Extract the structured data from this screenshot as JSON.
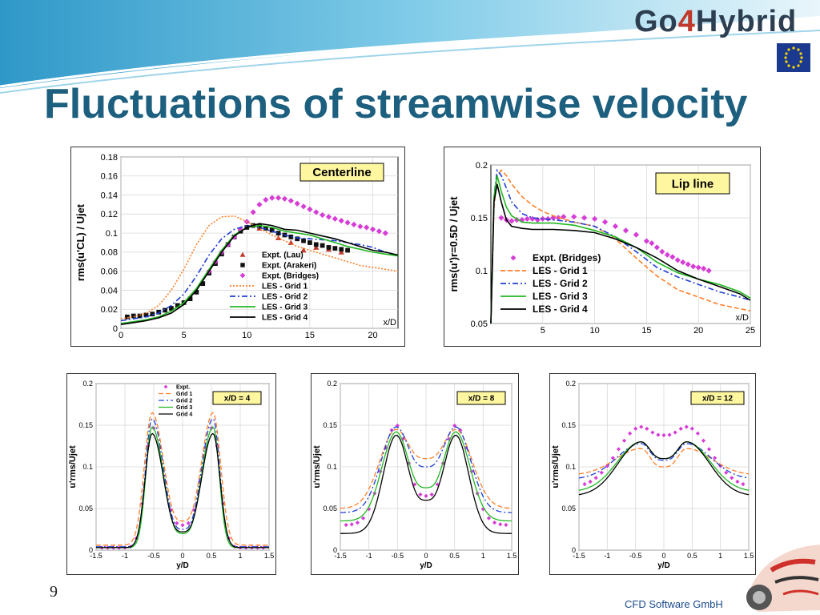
{
  "slide": {
    "title": "Fluctuations of streamwise velocity",
    "logo": {
      "part1": "Go",
      "part2": "4",
      "part3": "Hybrid"
    },
    "page_number": "9",
    "company": "CFD Software GmbH",
    "colors": {
      "title": "#1d5f7f",
      "banner": "#5bb8de",
      "lau": "#c0392b",
      "arakeri": "#111111",
      "bridges": "#d63cd6",
      "grid1": "#ff7f27",
      "grid2": "#1f3fd6",
      "grid3": "#22b822",
      "grid4": "#000000"
    },
    "icons": [
      "eu-flag-icon",
      "race-car-icon"
    ]
  },
  "chart_data": [
    {
      "id": "centerline",
      "type": "line",
      "title": "Centerline",
      "xlabel": "x/D",
      "ylabel": "rms(u'CL) / Ujet",
      "xlim": [
        0,
        22
      ],
      "ylim": [
        0,
        0.18
      ],
      "xticks": [
        0,
        5,
        10,
        15,
        20
      ],
      "yticks": [
        0,
        0.02,
        0.04,
        0.06,
        0.08,
        0.1,
        0.12,
        0.14,
        0.16,
        0.18
      ],
      "grid": true,
      "legend_placement": "bottom-right",
      "series": [
        {
          "name": "Expt. (Lau)",
          "kind": "markers",
          "marker": "triangle",
          "color": "#c0392b",
          "x": [
            11,
            12.5,
            13.5,
            14.5,
            15.5,
            16.5,
            17.5
          ],
          "y": [
            0.105,
            0.095,
            0.09,
            0.082,
            0.085,
            0.083,
            0.08
          ]
        },
        {
          "name": "Expt. (Arakeri)",
          "kind": "markers",
          "marker": "square",
          "color": "#111111",
          "x": [
            0.5,
            1,
            1.5,
            2,
            2.5,
            3,
            3.5,
            4,
            4.5,
            5,
            5.5,
            6,
            6.5,
            7,
            7.5,
            8,
            8.5,
            9,
            9.5,
            10,
            10.5,
            11,
            11.5,
            12,
            12.5,
            13,
            13.5,
            14,
            14.5,
            15,
            15.5,
            16,
            16.5,
            17,
            17.5,
            18
          ],
          "y": [
            0.012,
            0.013,
            0.013,
            0.014,
            0.015,
            0.017,
            0.019,
            0.021,
            0.024,
            0.027,
            0.031,
            0.038,
            0.047,
            0.058,
            0.068,
            0.078,
            0.088,
            0.096,
            0.102,
            0.106,
            0.108,
            0.107,
            0.105,
            0.103,
            0.1,
            0.098,
            0.096,
            0.094,
            0.092,
            0.09,
            0.088,
            0.087,
            0.085,
            0.084,
            0.083,
            0.082
          ]
        },
        {
          "name": "Expt. (Bridges)",
          "kind": "markers",
          "marker": "diamond",
          "color": "#d63cd6",
          "x": [
            7,
            7.5,
            8,
            8.5,
            9,
            9.5,
            10,
            10.5,
            11,
            11.5,
            12,
            12.5,
            13,
            13.5,
            14,
            14.5,
            15,
            15.5,
            16,
            16.5,
            17,
            17.5,
            18,
            18.5,
            19,
            19.5,
            20,
            20.5,
            21
          ],
          "y": [
            0.06,
            0.07,
            0.08,
            0.088,
            0.096,
            0.104,
            0.112,
            0.122,
            0.13,
            0.135,
            0.137,
            0.137,
            0.136,
            0.134,
            0.131,
            0.128,
            0.125,
            0.122,
            0.119,
            0.117,
            0.115,
            0.113,
            0.111,
            0.109,
            0.107,
            0.106,
            0.104,
            0.102,
            0.1
          ]
        },
        {
          "name": "LES - Grid 1",
          "kind": "line",
          "dash": "dot",
          "color": "#ff7f27",
          "x": [
            0,
            1,
            2,
            3,
            4,
            5,
            6,
            7,
            8,
            9,
            10,
            11,
            12,
            13,
            14,
            15,
            16,
            17,
            18,
            19,
            20,
            21,
            22
          ],
          "y": [
            0.01,
            0.012,
            0.016,
            0.024,
            0.04,
            0.062,
            0.088,
            0.108,
            0.117,
            0.118,
            0.112,
            0.105,
            0.098,
            0.092,
            0.086,
            0.082,
            0.078,
            0.074,
            0.07,
            0.066,
            0.064,
            0.062,
            0.06
          ]
        },
        {
          "name": "LES - Grid 2",
          "kind": "line",
          "dash": "dashdot",
          "color": "#1f3fd6",
          "x": [
            0,
            1,
            2,
            3,
            4,
            5,
            6,
            7,
            8,
            9,
            10,
            11,
            12,
            13,
            14,
            15,
            16,
            17,
            18,
            19,
            20,
            21,
            22
          ],
          "y": [
            0.008,
            0.01,
            0.012,
            0.016,
            0.024,
            0.036,
            0.055,
            0.077,
            0.094,
            0.104,
            0.108,
            0.106,
            0.102,
            0.098,
            0.095,
            0.094,
            0.093,
            0.092,
            0.09,
            0.088,
            0.085,
            0.08,
            0.076
          ]
        },
        {
          "name": "LES - Grid 3",
          "kind": "line",
          "dash": "solid",
          "color": "#22b822",
          "x": [
            0,
            1,
            2,
            3,
            4,
            5,
            6,
            7,
            8,
            9,
            10,
            11,
            12,
            13,
            14,
            15,
            16,
            17,
            18,
            19,
            20,
            21,
            22
          ],
          "y": [
            0.005,
            0.007,
            0.009,
            0.012,
            0.018,
            0.027,
            0.042,
            0.062,
            0.082,
            0.098,
            0.106,
            0.108,
            0.106,
            0.102,
            0.1,
            0.098,
            0.094,
            0.09,
            0.086,
            0.083,
            0.08,
            0.078,
            0.076
          ]
        },
        {
          "name": "LES - Grid 4",
          "kind": "line",
          "dash": "solid",
          "color": "#000000",
          "x": [
            0,
            1,
            2,
            3,
            4,
            5,
            6,
            7,
            8,
            9,
            10,
            11,
            12,
            13,
            14,
            15,
            16,
            17,
            18,
            19,
            20,
            21,
            22
          ],
          "y": [
            0.004,
            0.006,
            0.008,
            0.011,
            0.016,
            0.025,
            0.04,
            0.06,
            0.08,
            0.097,
            0.106,
            0.11,
            0.108,
            0.104,
            0.103,
            0.1,
            0.097,
            0.094,
            0.09,
            0.086,
            0.082,
            0.08,
            0.077
          ]
        }
      ]
    },
    {
      "id": "lipline",
      "type": "line",
      "title": "Lip line",
      "xlabel": "x/D",
      "ylabel": "rms(u')r=0.5D / Ujet",
      "xlim": [
        0,
        25
      ],
      "ylim": [
        0.05,
        0.2
      ],
      "xticks": [
        5,
        10,
        15,
        20,
        25
      ],
      "yticks": [
        0.05,
        0.1,
        0.15,
        0.2
      ],
      "grid": true,
      "legend_placement": "bottom-left",
      "series": [
        {
          "name": "Expt. (Bridges)",
          "kind": "markers",
          "marker": "diamond",
          "color": "#d63cd6",
          "x": [
            1,
            1.5,
            2,
            2.5,
            3,
            3.5,
            4,
            4.5,
            5,
            5.5,
            6,
            6.5,
            7,
            8,
            9,
            10,
            11,
            12,
            13,
            14,
            15,
            15.5,
            16,
            16.5,
            17,
            17.5,
            18,
            18.5,
            19,
            19.5,
            20,
            20.5,
            21
          ],
          "y": [
            0.15,
            0.148,
            0.147,
            0.148,
            0.148,
            0.149,
            0.149,
            0.148,
            0.149,
            0.149,
            0.15,
            0.15,
            0.151,
            0.151,
            0.15,
            0.149,
            0.146,
            0.142,
            0.138,
            0.134,
            0.128,
            0.126,
            0.122,
            0.118,
            0.115,
            0.113,
            0.11,
            0.108,
            0.106,
            0.104,
            0.103,
            0.102,
            0.1
          ]
        },
        {
          "name": "LES - Grid 1",
          "kind": "line",
          "dash": "dash",
          "color": "#ff7f27",
          "x": [
            0,
            0.3,
            0.6,
            1,
            1.5,
            2,
            3,
            4,
            5,
            6,
            8,
            10,
            12,
            14,
            16,
            18,
            20,
            22,
            24,
            25
          ],
          "y": [
            0.05,
            0.16,
            0.19,
            0.195,
            0.19,
            0.182,
            0.17,
            0.162,
            0.156,
            0.152,
            0.146,
            0.142,
            0.13,
            0.112,
            0.095,
            0.082,
            0.075,
            0.068,
            0.064,
            0.062
          ]
        },
        {
          "name": "LES - Grid 2",
          "kind": "line",
          "dash": "dashdot",
          "color": "#1f3fd6",
          "x": [
            0,
            0.3,
            0.6,
            1,
            1.5,
            2,
            3,
            4,
            5,
            6,
            8,
            10,
            12,
            14,
            16,
            18,
            20,
            22,
            24,
            25
          ],
          "y": [
            0.05,
            0.17,
            0.195,
            0.19,
            0.178,
            0.165,
            0.154,
            0.15,
            0.149,
            0.148,
            0.146,
            0.142,
            0.132,
            0.118,
            0.103,
            0.094,
            0.087,
            0.08,
            0.075,
            0.072
          ]
        },
        {
          "name": "LES - Grid 3",
          "kind": "line",
          "dash": "solid",
          "color": "#22b822",
          "x": [
            0,
            0.3,
            0.6,
            1,
            1.5,
            2,
            3,
            4,
            5,
            6,
            8,
            10,
            12,
            14,
            16,
            18,
            20,
            22,
            24,
            25
          ],
          "y": [
            0.05,
            0.17,
            0.19,
            0.175,
            0.16,
            0.152,
            0.146,
            0.145,
            0.145,
            0.145,
            0.143,
            0.138,
            0.132,
            0.122,
            0.108,
            0.098,
            0.092,
            0.087,
            0.08,
            0.074
          ]
        },
        {
          "name": "LES - Grid 4",
          "kind": "line",
          "dash": "solid",
          "color": "#000000",
          "x": [
            0,
            0.3,
            0.6,
            1,
            1.5,
            2,
            3,
            4,
            5,
            6,
            8,
            10,
            12,
            14,
            16,
            18,
            20,
            22,
            24,
            25
          ],
          "y": [
            0.05,
            0.165,
            0.182,
            0.165,
            0.148,
            0.142,
            0.14,
            0.139,
            0.139,
            0.139,
            0.138,
            0.136,
            0.13,
            0.122,
            0.112,
            0.1,
            0.092,
            0.085,
            0.078,
            0.072
          ]
        }
      ]
    },
    {
      "id": "xd4",
      "type": "line",
      "title": "x/D = 4",
      "xlabel": "y/D",
      "ylabel": "u'rms/Ujet",
      "xlim": [
        -1.5,
        1.5
      ],
      "ylim": [
        0,
        0.2
      ],
      "xticks": [
        -1.5,
        -1,
        -0.5,
        0,
        0.5,
        1,
        1.5
      ],
      "yticks": [
        0,
        0.05,
        0.1,
        0.15,
        0.2
      ],
      "grid": true,
      "legend_placement": "top-left",
      "profile": {
        "peak_x": 0.53,
        "width": [
          0.2,
          0.22,
          0.19,
          0.18,
          0.2
        ],
        "edge": [
          0.003,
          0.006,
          0.004,
          0.003,
          0.003
        ],
        "center": [
          0.03,
          0.035,
          0.025,
          0.02,
          0.022
        ],
        "peak": [
          0.148,
          0.165,
          0.158,
          0.148,
          0.14
        ]
      },
      "series": [
        {
          "name": "Expt.",
          "kind": "markers",
          "marker": "diamond",
          "color": "#d63cd6"
        },
        {
          "name": "Grid 1",
          "kind": "line",
          "dash": "dash",
          "color": "#ff7f27"
        },
        {
          "name": "Grid 2",
          "kind": "line",
          "dash": "dashdot",
          "color": "#1f3fd6"
        },
        {
          "name": "Grid 3",
          "kind": "line",
          "dash": "solid",
          "color": "#22b822"
        },
        {
          "name": "Grid 4",
          "kind": "line",
          "dash": "solid",
          "color": "#000000"
        }
      ]
    },
    {
      "id": "xd8",
      "type": "line",
      "title": "x/D = 8",
      "xlabel": "y/D",
      "ylabel": "u'rms/Ujet",
      "xlim": [
        -1.5,
        1.5
      ],
      "ylim": [
        0,
        0.2
      ],
      "xticks": [
        -1.5,
        -1,
        -0.5,
        0,
        0.5,
        1,
        1.5
      ],
      "yticks": [
        0,
        0.05,
        0.1,
        0.15,
        0.2
      ],
      "grid": true,
      "profile": {
        "peak_x": 0.52,
        "width": [
          0.42,
          0.48,
          0.44,
          0.42,
          0.38
        ],
        "edge": [
          0.03,
          0.05,
          0.045,
          0.035,
          0.02
        ],
        "center": [
          0.065,
          0.11,
          0.1,
          0.075,
          0.06
        ],
        "peak": [
          0.15,
          0.145,
          0.148,
          0.142,
          0.138
        ]
      },
      "series": [
        {
          "name": "Expt.",
          "kind": "markers",
          "marker": "diamond",
          "color": "#d63cd6"
        },
        {
          "name": "Grid 1",
          "kind": "line",
          "dash": "dash",
          "color": "#ff7f27"
        },
        {
          "name": "Grid 2",
          "kind": "line",
          "dash": "dashdot",
          "color": "#1f3fd6"
        },
        {
          "name": "Grid 3",
          "kind": "line",
          "dash": "solid",
          "color": "#22b822"
        },
        {
          "name": "Grid 4",
          "kind": "line",
          "dash": "solid",
          "color": "#000000"
        }
      ]
    },
    {
      "id": "xd12",
      "type": "line",
      "title": "x/D = 12",
      "xlabel": "y/D",
      "ylabel": "u'rms/Ujet",
      "xlim": [
        -1.5,
        1.5
      ],
      "ylim": [
        0,
        0.2
      ],
      "xticks": [
        -1.5,
        -1,
        -0.5,
        0,
        0.5,
        1,
        1.5
      ],
      "yticks": [
        0,
        0.05,
        0.1,
        0.15,
        0.2
      ],
      "grid": true,
      "profile": {
        "peak_x": 0.4,
        "width": [
          0.7,
          0.75,
          0.72,
          0.7,
          0.68
        ],
        "edge": [
          0.075,
          0.09,
          0.085,
          0.07,
          0.065
        ],
        "center": [
          0.138,
          0.1,
          0.108,
          0.11,
          0.11
        ],
        "peak": [
          0.148,
          0.122,
          0.128,
          0.13,
          0.13
        ]
      },
      "series": [
        {
          "name": "Expt.",
          "kind": "markers",
          "marker": "diamond",
          "color": "#d63cd6"
        },
        {
          "name": "Grid 1",
          "kind": "line",
          "dash": "dash",
          "color": "#ff7f27"
        },
        {
          "name": "Grid 2",
          "kind": "line",
          "dash": "dashdot",
          "color": "#1f3fd6"
        },
        {
          "name": "Grid 3",
          "kind": "line",
          "dash": "solid",
          "color": "#22b822"
        },
        {
          "name": "Grid 4",
          "kind": "line",
          "dash": "solid",
          "color": "#000000"
        }
      ]
    }
  ]
}
